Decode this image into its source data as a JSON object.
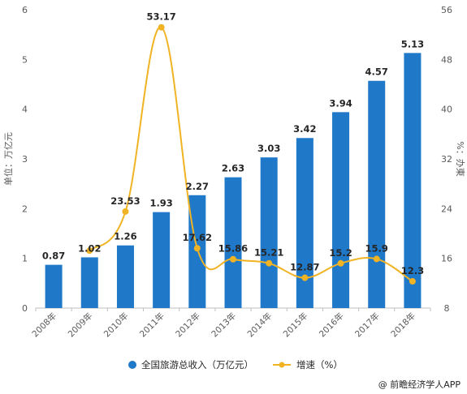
{
  "chart_data": {
    "type": "bar+line",
    "categories": [
      "2008年",
      "2009年",
      "2010年",
      "2011年",
      "2012年",
      "2013年",
      "2014年",
      "2015年",
      "2016年",
      "2017年",
      "2018年"
    ],
    "series": [
      {
        "name": "全国旅游总收入（万亿元）",
        "type": "bar",
        "axis": "left",
        "values": [
          0.87,
          1.02,
          1.26,
          1.93,
          2.27,
          2.63,
          3.03,
          3.42,
          3.94,
          4.57,
          5.13
        ]
      },
      {
        "name": "增速（%）",
        "type": "line",
        "axis": "right",
        "values": [
          null,
          17.24,
          23.53,
          53.17,
          17.62,
          15.86,
          15.21,
          12.87,
          15.2,
          15.9,
          12.3
        ],
        "labels": [
          "",
          "",
          "23.53",
          "53.17",
          "17.62",
          "15.86",
          "15.21",
          "12.87",
          "15.2",
          "15.9",
          "12.3"
        ]
      }
    ],
    "ylabel_left": "单位：万亿元",
    "ylabel_right": "%：办東",
    "ylim_left": [
      0,
      6
    ],
    "yticks_left": [
      "0",
      "1",
      "2",
      "3",
      "4",
      "5",
      "6"
    ],
    "ylim_right": [
      8,
      56
    ],
    "yticks_right": [
      "8",
      "16",
      "24",
      "32",
      "40",
      "48",
      "56"
    ],
    "grid": false,
    "legend_position": "bottom",
    "colors": {
      "bar": "#1f78c8",
      "line": "#f0b323",
      "text": "#262626",
      "axis": "#bfbfbf"
    }
  },
  "source": "@ 前瞻经济学人APP"
}
